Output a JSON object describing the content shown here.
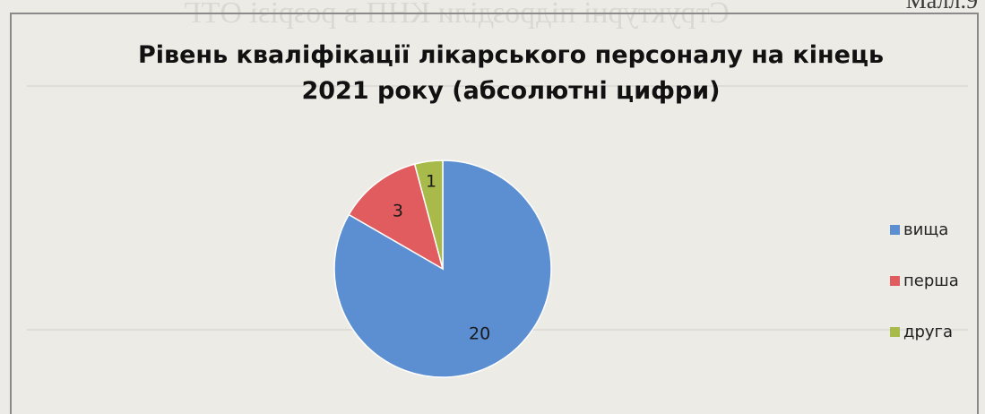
{
  "page_number": "Малл.9",
  "chart_data": {
    "type": "pie",
    "title": "Рівень кваліфікації лікарського персоналу на кінець 2021 року (абсолютні цифри)",
    "title_lines": [
      "Рівень кваліфікації лікарського персоналу на кінець",
      "2021 року (абсолютні цифри)"
    ],
    "categories": [
      "вища",
      "перша",
      "друга"
    ],
    "values": [
      20,
      3,
      1
    ],
    "colors": [
      "#5b8fd1",
      "#e15c5f",
      "#a8bb4a"
    ],
    "data_labels": [
      "20",
      "3",
      "1"
    ],
    "legend_position": "right",
    "start_angle": "12 o'clock, clockwise"
  }
}
